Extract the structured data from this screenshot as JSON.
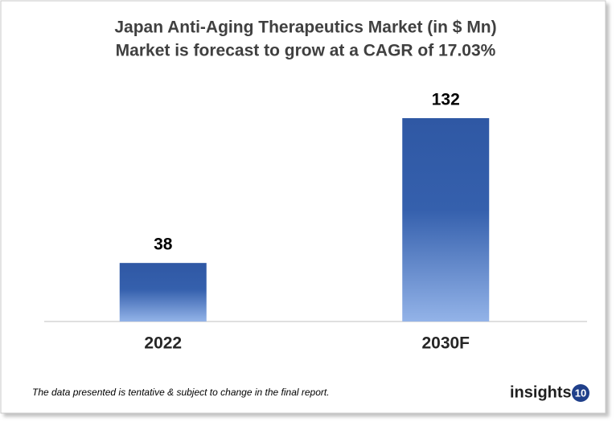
{
  "chart_data": {
    "type": "bar",
    "title": "Japan Anti-Aging  Therapeutics Market (in $ Mn)",
    "subtitle": "Market is forecast to grow at a CAGR of 17.03%",
    "categories": [
      "2022",
      "2030F"
    ],
    "values": [
      38,
      132
    ],
    "color": "#2f58a4"
  },
  "footnote": "The data presented is tentative & subject to change in the final report.",
  "brand": {
    "name": "insights",
    "badge": "10"
  }
}
